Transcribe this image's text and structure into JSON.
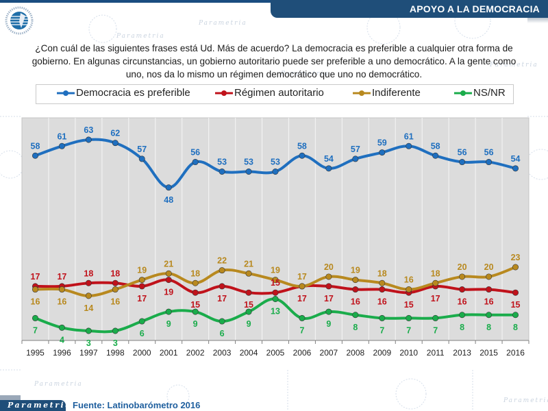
{
  "header": {
    "title": "APOYO A LA DEMOCRACIA"
  },
  "question": "¿Con cuál de las siguientes frases está Ud. Más de acuerdo? La democracia es preferible a cualquier otra forma de gobierno. En algunas circunstancias, un gobierno autoritario puede ser preferible a uno democrático. A la gente como uno, nos da lo mismo un régimen democrático que uno no democrático.",
  "footer": {
    "brand": "Parametria",
    "source": "Fuente: Latinobarómetro 2016"
  },
  "logo": {
    "icon": "latinobarometro-logo-icon"
  },
  "chart_data": {
    "type": "line",
    "title": "APOYO A LA DEMOCRACIA",
    "xlabel": "",
    "ylabel": "",
    "ylim": [
      0,
      70
    ],
    "grid": "vertical",
    "legend_position": "top",
    "categories": [
      "1995",
      "1996",
      "1997",
      "1998",
      "2000",
      "2001",
      "2002",
      "2003",
      "2004",
      "2005",
      "2006",
      "2007",
      "2008",
      "2009",
      "2010",
      "2011",
      "2013",
      "2015",
      "2016"
    ],
    "series": [
      {
        "name": "Democracia es preferible",
        "color": "#1f6fbf",
        "values": [
          58,
          61,
          63,
          62,
          57,
          48,
          56,
          53,
          53,
          53,
          58,
          54,
          57,
          59,
          61,
          58,
          56,
          56,
          54
        ]
      },
      {
        "name": "Régimen autoritario",
        "color": "#c0121b",
        "values": [
          17,
          17,
          18,
          18,
          17,
          19,
          15,
          17,
          15,
          15,
          17,
          17,
          16,
          16,
          15,
          17,
          16,
          16,
          15
        ]
      },
      {
        "name": "Indiferente",
        "color": "#b8891f",
        "values": [
          16,
          16,
          14,
          16,
          19,
          21,
          18,
          22,
          21,
          19,
          17,
          20,
          19,
          18,
          16,
          18,
          20,
          20,
          23
        ]
      },
      {
        "name": "NS/NR",
        "color": "#1aac4b",
        "values": [
          7,
          4,
          3,
          3,
          6,
          9,
          9,
          6,
          9,
          13,
          7,
          9,
          8,
          7,
          7,
          7,
          8,
          8,
          8
        ]
      }
    ],
    "label_positions": [
      [
        "above",
        "above",
        "above",
        "above",
        "above",
        "below",
        "above",
        "above",
        "above",
        "above",
        "above",
        "above",
        "above",
        "above",
        "above",
        "above",
        "above",
        "above",
        "above"
      ],
      [
        "above",
        "above",
        "above",
        "above",
        "below",
        "below",
        "below",
        "below",
        "below",
        "above",
        "below",
        "below",
        "below",
        "below",
        "below",
        "below",
        "below",
        "below",
        "below"
      ],
      [
        "below",
        "below",
        "below",
        "below",
        "above",
        "above",
        "above",
        "above",
        "above",
        "above",
        "above",
        "above",
        "above",
        "above",
        "above",
        "above",
        "above",
        "above",
        "above"
      ],
      [
        "below",
        "below",
        "below",
        "below",
        "below",
        "below",
        "below",
        "below",
        "below",
        "below",
        "below",
        "below",
        "below",
        "below",
        "below",
        "below",
        "below",
        "below",
        "below"
      ]
    ]
  }
}
